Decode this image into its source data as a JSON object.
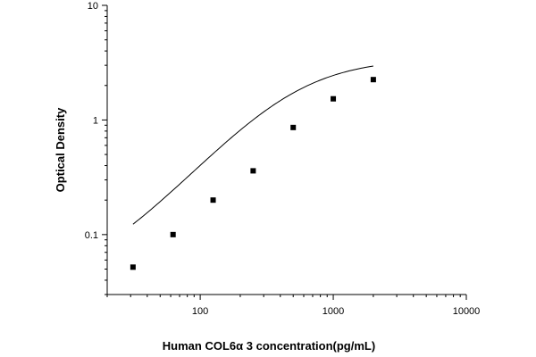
{
  "chart_data": {
    "type": "scatter",
    "title": "",
    "xlabel": "Human COL6α 3 concentration(pg/mL)",
    "ylabel": "Optical Density",
    "x_scale": "log",
    "y_scale": "log",
    "xlim": [
      20,
      10000
    ],
    "ylim": [
      0.03,
      10
    ],
    "x_ticks": [
      {
        "value": 100,
        "label": "100"
      },
      {
        "value": 1000,
        "label": "1000"
      },
      {
        "value": 10000,
        "label": "10000"
      }
    ],
    "y_ticks": [
      {
        "value": 0.1,
        "label": "0.1"
      },
      {
        "value": 1,
        "label": "1"
      },
      {
        "value": 10,
        "label": "10"
      }
    ],
    "grid": false,
    "legend": "none",
    "colors": {
      "marks": "#000000",
      "axes": "#000000"
    },
    "series": [
      {
        "marker": "square",
        "x": [
          31.25,
          62.5,
          125,
          250,
          500,
          1000,
          2000
        ],
        "y": [
          0.052,
          0.1,
          0.2,
          0.36,
          0.86,
          1.53,
          2.25
        ]
      }
    ],
    "fit_curve": {
      "type": "4PL",
      "A": 0.035,
      "B": 1.3,
      "C": 510,
      "D": 3.45,
      "x_range": [
        31.25,
        2000
      ]
    }
  }
}
